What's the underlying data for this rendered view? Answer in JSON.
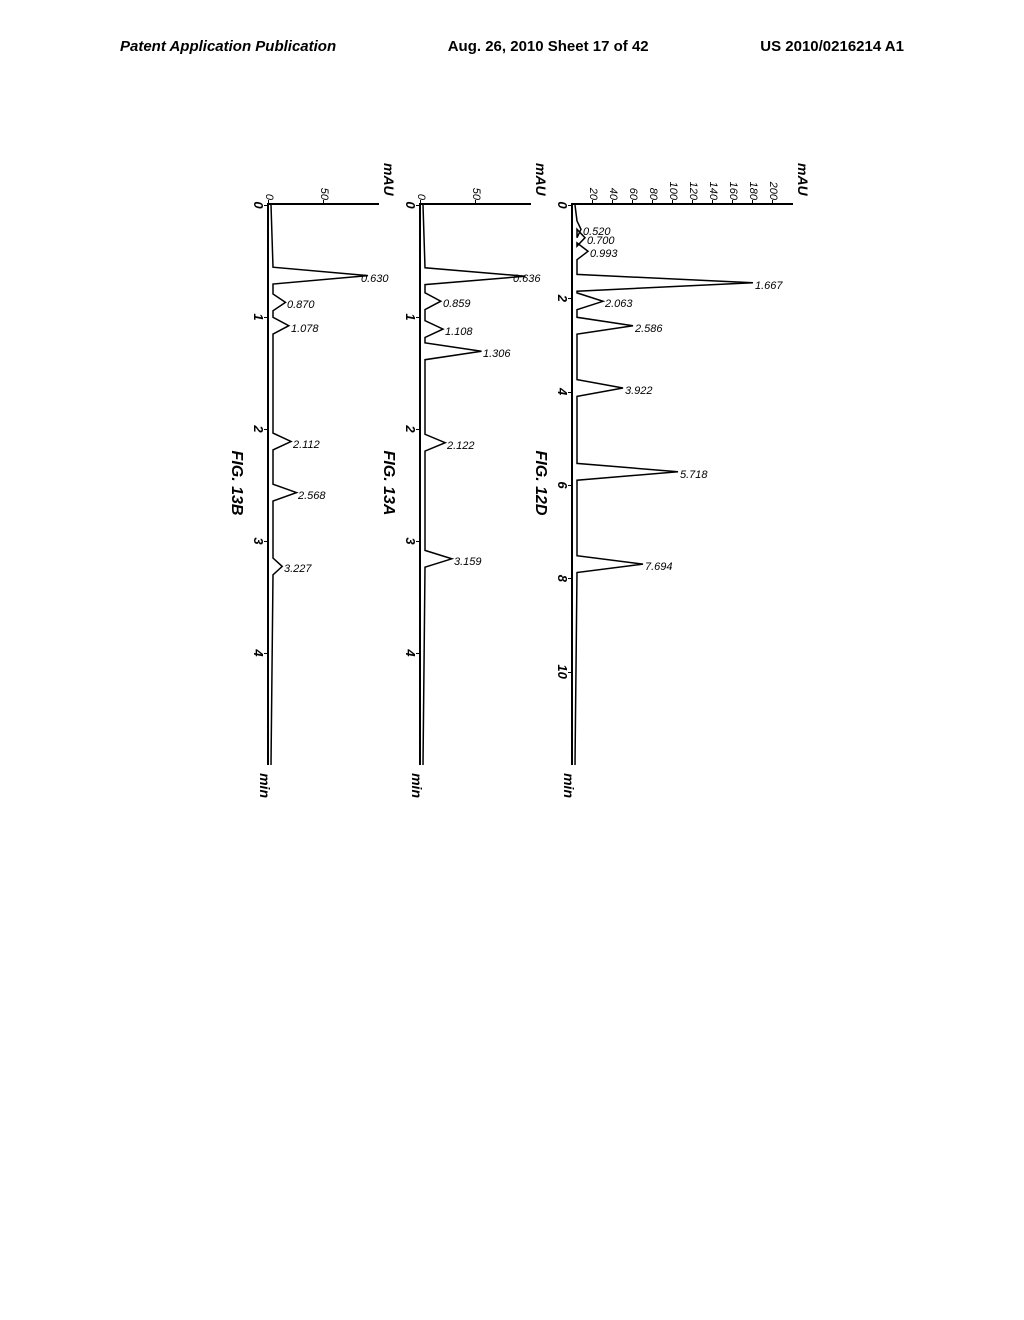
{
  "header": {
    "left": "Patent Application Publication",
    "center": "Aug. 26, 2010  Sheet 17 of 42",
    "right": "US 2010/0216214 A1"
  },
  "chart1": {
    "type": "chromatogram",
    "figure_label": "FIG. 12D",
    "y_axis_label": "mAU",
    "x_axis_label": "min",
    "y_ticks": [
      20,
      40,
      60,
      80,
      100,
      120,
      140,
      160,
      180,
      200
    ],
    "x_ticks": [
      0,
      2,
      4,
      6,
      8,
      10
    ],
    "x_max": 12,
    "y_max": 220,
    "peaks": [
      {
        "time": 0.52,
        "label": "0.520",
        "height": 8
      },
      {
        "time": 0.7,
        "label": "0.700",
        "height": 12
      },
      {
        "time": 0.993,
        "label": "0.993",
        "height": 15
      },
      {
        "time": 1.667,
        "label": "1.667",
        "height": 180
      },
      {
        "time": 2.063,
        "label": "2.063",
        "height": 30
      },
      {
        "time": 2.586,
        "label": "2.586",
        "height": 60
      },
      {
        "time": 3.922,
        "label": "3.922",
        "height": 50
      },
      {
        "time": 5.718,
        "label": "5.718",
        "height": 105
      },
      {
        "time": 7.694,
        "label": "7.694",
        "height": 70
      }
    ],
    "line_color": "#000000",
    "background_color": "#ffffff"
  },
  "chart2": {
    "type": "chromatogram",
    "figure_label": "FIG. 13A",
    "y_axis_label": "mAU",
    "x_axis_label": "min",
    "y_ticks": [
      0,
      50
    ],
    "x_ticks": [
      0,
      1,
      2,
      3,
      4
    ],
    "x_max": 5,
    "y_max": 100,
    "peaks": [
      {
        "time": 0.636,
        "label": "0.636",
        "height": 95
      },
      {
        "time": 0.859,
        "label": "0.859",
        "height": 18
      },
      {
        "time": 1.108,
        "label": "1.108",
        "height": 20
      },
      {
        "time": 1.306,
        "label": "1.306",
        "height": 55
      },
      {
        "time": 2.122,
        "label": "2.122",
        "height": 22
      },
      {
        "time": 3.159,
        "label": "3.159",
        "height": 28
      }
    ],
    "line_color": "#000000",
    "background_color": "#ffffff"
  },
  "chart3": {
    "type": "chromatogram",
    "figure_label": "FIG. 13B",
    "y_axis_label": "mAU",
    "x_axis_label": "min",
    "y_ticks": [
      0,
      50
    ],
    "x_ticks": [
      0,
      1,
      2,
      3,
      4
    ],
    "x_max": 5,
    "y_max": 100,
    "peaks": [
      {
        "time": 0.63,
        "label": "0.630",
        "height": 90
      },
      {
        "time": 0.87,
        "label": "0.870",
        "height": 15
      },
      {
        "time": 1.078,
        "label": "1.078",
        "height": 18
      },
      {
        "time": 2.112,
        "label": "2.112",
        "height": 20
      },
      {
        "time": 2.568,
        "label": "2.568",
        "height": 25
      },
      {
        "time": 3.227,
        "label": "3.227",
        "height": 12
      }
    ],
    "line_color": "#000000",
    "background_color": "#ffffff"
  }
}
